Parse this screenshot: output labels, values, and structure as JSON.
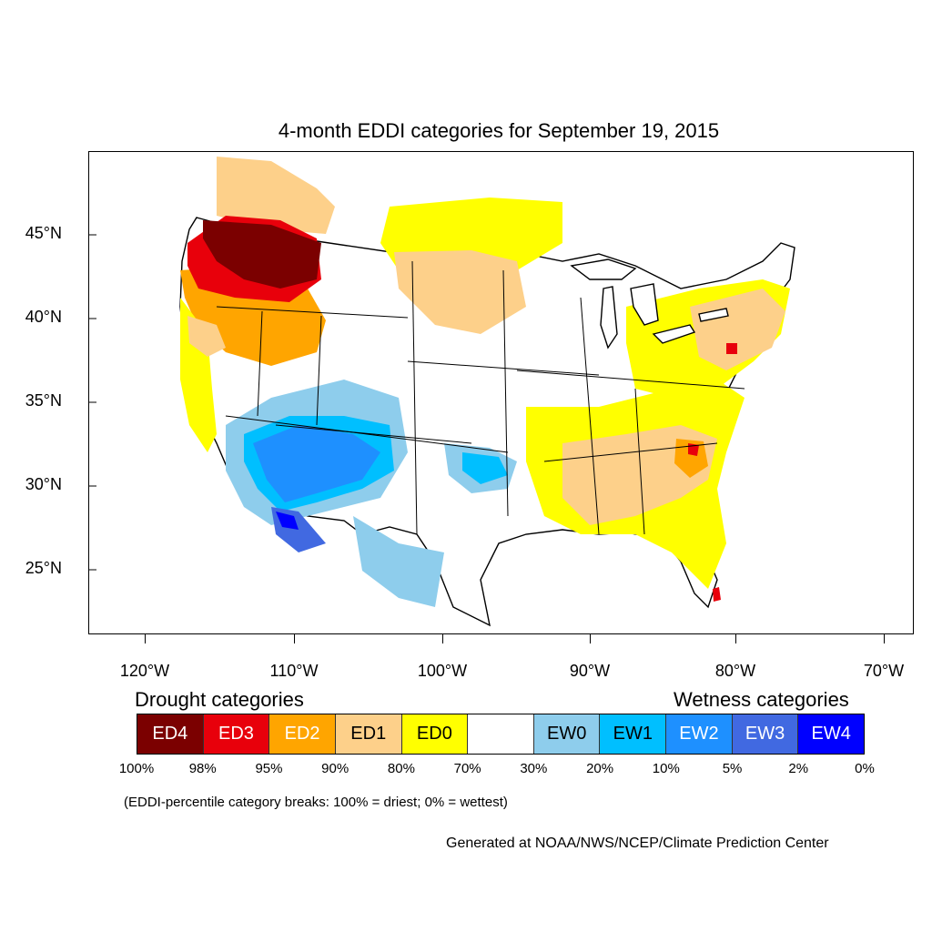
{
  "title": "4-month EDDI categories for September 19, 2015",
  "lat_labels": [
    "45°N",
    "40°N",
    "35°N",
    "30°N",
    "25°N"
  ],
  "lon_labels": [
    "120°W",
    "110°W",
    "100°W",
    "90°W",
    "80°W",
    "70°W"
  ],
  "drought_heading": "Drought categories",
  "wetness_heading": "Wetness categories",
  "categories": [
    {
      "label": "ED4",
      "color": "#7b0000",
      "text_color": "#ffffff"
    },
    {
      "label": "ED3",
      "color": "#e8000b",
      "text_color": "#ffffff"
    },
    {
      "label": "ED2",
      "color": "#ffa500",
      "text_color": "#ffffff"
    },
    {
      "label": "ED1",
      "color": "#fdd08a",
      "text_color": "#000000"
    },
    {
      "label": "ED0",
      "color": "#ffff00",
      "text_color": "#000000"
    },
    {
      "label": "",
      "color": "#ffffff",
      "text_color": "#000000"
    },
    {
      "label": "EW0",
      "color": "#8ecdec",
      "text_color": "#000000"
    },
    {
      "label": "EW1",
      "color": "#00bfff",
      "text_color": "#000000"
    },
    {
      "label": "EW2",
      "color": "#1e90ff",
      "text_color": "#ffffff"
    },
    {
      "label": "EW3",
      "color": "#4169e1",
      "text_color": "#ffffff"
    },
    {
      "label": "EW4",
      "color": "#0000ff",
      "text_color": "#ffffff"
    }
  ],
  "percent_breaks": [
    "100%",
    "98%",
    "95%",
    "90%",
    "80%",
    "70%",
    "30%",
    "20%",
    "10%",
    "5%",
    "2%",
    "0%"
  ],
  "note": "(EDDI-percentile category breaks: 100% = driest; 0% = wettest)",
  "credit": "Generated at NOAA/NWS/NCEP/Climate Prediction Center"
}
